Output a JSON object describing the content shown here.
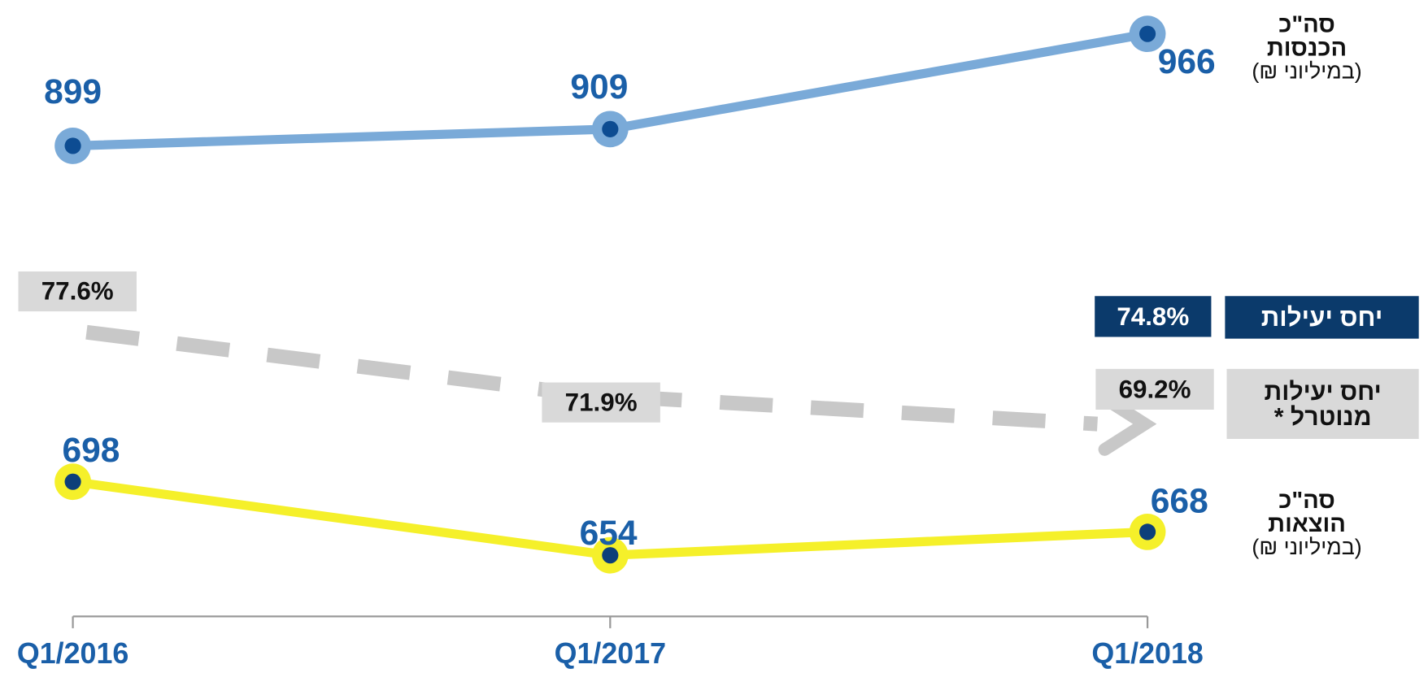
{
  "chart_data": {
    "type": "line",
    "categories": [
      "Q1/2016",
      "Q1/2017",
      "Q1/2018"
    ],
    "series": [
      {
        "name": "סה\"כ הכנסות",
        "unit": "(במיליוני ₪)",
        "color": "#7aaad8",
        "values": [
          899,
          909,
          966
        ]
      },
      {
        "name": "סה\"כ הוצאות",
        "unit": "(במיליוני ₪)",
        "color": "#f5f02a",
        "values": [
          698,
          654,
          668
        ]
      },
      {
        "name": "יחס יעילות מנוטרל *",
        "color": "#c8c8c8",
        "line_style": "dashed",
        "values": [
          77.6,
          71.9,
          69.2
        ],
        "value_labels": [
          "77.6%",
          "71.9%",
          "69.2%"
        ]
      }
    ],
    "annotation": {
      "label": "יחס יעילות",
      "value": 74.8,
      "value_label": "74.8%"
    }
  }
}
